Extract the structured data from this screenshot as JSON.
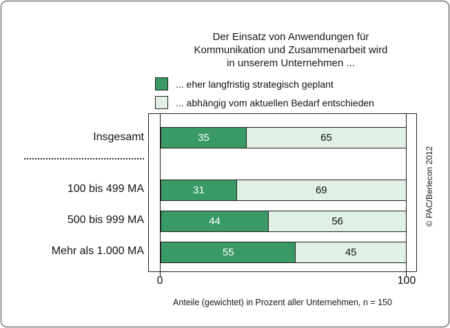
{
  "header": {
    "title_lines": [
      "Der Einsatz von Anwendungen für",
      "Kommunikation und Zusammenarbeit wird",
      "in unserem Unternehmen ..."
    ]
  },
  "legend": {
    "items": [
      {
        "label": "... eher langfristig strategisch geplant",
        "color": "#3A9A66"
      },
      {
        "label": "... abhängig vom aktuellen Bedarf entschieden",
        "color": "#E1F0E4"
      }
    ]
  },
  "chart_data": {
    "type": "bar",
    "orientation": "horizontal",
    "stacked": true,
    "title": "Der Einsatz von Anwendungen für Kommunikation und Zusammenarbeit wird in unserem Unternehmen ...",
    "categories": [
      "Insgesamt",
      "100 bis 499 MA",
      "500 bis 999 MA",
      "Mehr als 1.000 MA"
    ],
    "separator_after_category_index": 0,
    "series": [
      {
        "name": "... eher langfristig strategisch geplant",
        "color": "#3A9A66",
        "values": [
          35,
          31,
          44,
          55
        ]
      },
      {
        "name": "... abhängig vom aktuellen Bedarf entschieden",
        "color": "#E1F0E4",
        "values": [
          65,
          69,
          56,
          45
        ]
      }
    ],
    "xlim": [
      0,
      100
    ],
    "x_ticks": [
      "0",
      "100"
    ],
    "xlabel": "Anteile (gewichtet) in Prozent aller Unternehmen, n = 150",
    "legend_position": "top",
    "grid": false,
    "value_labels": "inside"
  },
  "footer": {
    "caption": "Anteile (gewichtet) in Prozent aller Unternehmen, n = 150",
    "copyright": "© PAC/Berlecon 2012"
  },
  "colors": {
    "series1": "#3A9A66",
    "series2": "#E1F0E4",
    "bar_border": "#1F1F1F",
    "frame_border": "#1F1F1F",
    "value_label_on_dark": "#FFFFFF",
    "value_label_on_light": "#111111"
  }
}
